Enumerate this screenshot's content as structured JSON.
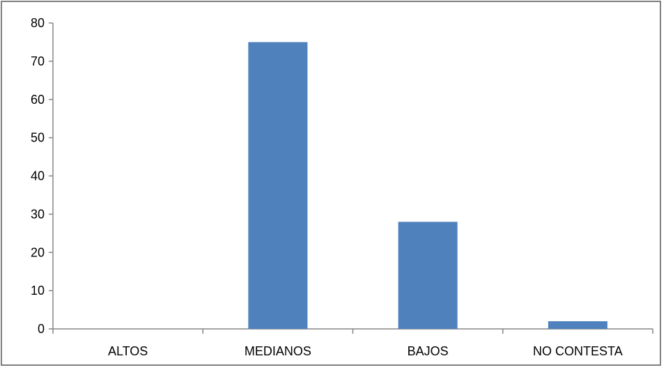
{
  "chart_data": {
    "type": "bar",
    "categories": [
      "ALTOS",
      "MEDIANOS",
      "BAJOS",
      "NO CONTESTA"
    ],
    "values": [
      0,
      75,
      28,
      2
    ],
    "title": "",
    "xlabel": "",
    "ylabel": "",
    "ylim": [
      0,
      80
    ],
    "yticks": [
      0,
      10,
      20,
      30,
      40,
      50,
      60,
      70,
      80
    ],
    "grid": false,
    "legend": "none",
    "bar_color": "#4f81bd"
  }
}
